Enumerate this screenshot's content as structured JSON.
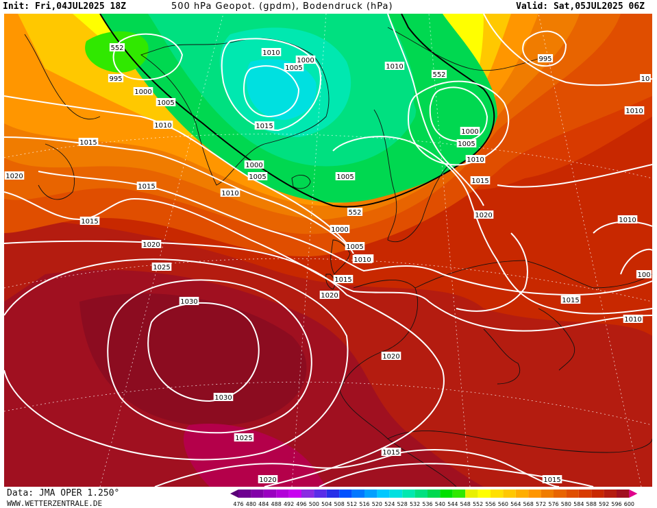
{
  "header": {
    "init": "Init: Fri,04JUL2025 18Z",
    "title": "500 hPa Geopot. (gpdm), Bodendruck (hPa)",
    "valid": "Valid: Sat,05JUL2025 06Z"
  },
  "footer": {
    "data_source": "Data: JMA OPER 1.250°",
    "website": "WWW.WETTERZENTRALE.DE"
  },
  "legend": {
    "levels": [
      "476",
      "480",
      "484",
      "488",
      "492",
      "496",
      "500",
      "504",
      "508",
      "512",
      "516",
      "520",
      "524",
      "528",
      "532",
      "536",
      "540",
      "544",
      "548",
      "552",
      "556",
      "560",
      "564",
      "568",
      "572",
      "576",
      "580",
      "584",
      "588",
      "592",
      "596",
      "600"
    ],
    "colors": [
      "#5a0078",
      "#6e0090",
      "#8200a8",
      "#9a00c0",
      "#b200d8",
      "#c800f0",
      "#8a2be2",
      "#5a2de8",
      "#2830e8",
      "#0050ff",
      "#0078ff",
      "#00a0ff",
      "#00c8ff",
      "#00e0e0",
      "#00e8b0",
      "#00e080",
      "#00d850",
      "#00e000",
      "#30e800",
      "#e8f000",
      "#ffff00",
      "#ffe000",
      "#ffc800",
      "#ffae00",
      "#ff9600",
      "#f07c00",
      "#e86400",
      "#e04e00",
      "#d83a00",
      "#c82800",
      "#b41c10",
      "#a01020",
      "#e0008c"
    ]
  },
  "map_labels": [
    {
      "text": "552"
    },
    {
      "text": "995"
    },
    {
      "text": "1000"
    },
    {
      "text": "1005"
    },
    {
      "text": "1010"
    },
    {
      "text": "1015"
    },
    {
      "text": "1020"
    },
    {
      "text": "1015"
    },
    {
      "text": "1015"
    },
    {
      "text": "1010"
    },
    {
      "text": "1010"
    },
    {
      "text": "1005"
    },
    {
      "text": "1000"
    },
    {
      "text": "1015"
    },
    {
      "text": "1000"
    },
    {
      "text": "1005"
    },
    {
      "text": "1005"
    },
    {
      "text": "1010"
    },
    {
      "text": "552"
    },
    {
      "text": "1000"
    },
    {
      "text": "1005"
    },
    {
      "text": "1010"
    },
    {
      "text": "1015"
    },
    {
      "text": "1020"
    },
    {
      "text": "1020"
    },
    {
      "text": "1025"
    },
    {
      "text": "1030"
    },
    {
      "text": "1030"
    },
    {
      "text": "1025"
    },
    {
      "text": "1020"
    },
    {
      "text": "1020"
    },
    {
      "text": "1015"
    },
    {
      "text": "1015"
    },
    {
      "text": "1010"
    },
    {
      "text": "552"
    },
    {
      "text": "1000"
    },
    {
      "text": "1005"
    },
    {
      "text": "1010"
    },
    {
      "text": "1015"
    },
    {
      "text": "1020"
    },
    {
      "text": "995"
    },
    {
      "text": "1010"
    },
    {
      "text": "1010"
    },
    {
      "text": "1015"
    },
    {
      "text": "1010"
    },
    {
      "text": "100"
    },
    {
      "text": "10"
    }
  ]
}
